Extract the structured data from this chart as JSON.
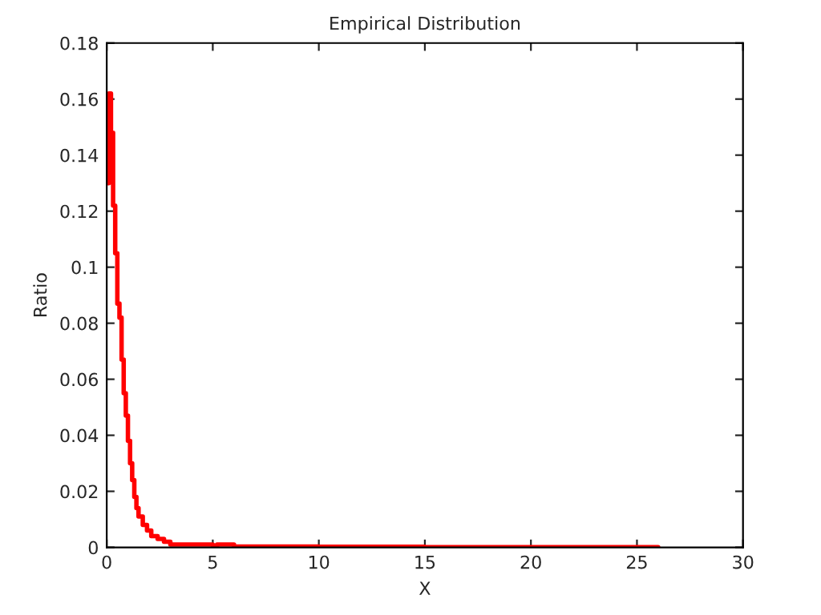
{
  "chart_data": {
    "type": "step",
    "title": "Empirical Distribution",
    "xlabel": "X",
    "ylabel": "Ratio",
    "x": [
      0,
      0.1,
      0.2,
      0.3,
      0.4,
      0.5,
      0.6,
      0.7,
      0.8,
      0.9,
      1.0,
      1.1,
      1.2,
      1.3,
      1.4,
      1.5,
      1.7,
      1.9,
      2.1,
      2.4,
      2.7,
      3.0,
      3.5,
      4.0,
      5.0,
      5.2,
      6.0,
      10.0,
      15.0,
      20.0,
      26.0
    ],
    "series": [
      {
        "color": "#ff0000",
        "values": [
          0.13,
          0.162,
          0.148,
          0.122,
          0.105,
          0.087,
          0.082,
          0.067,
          0.055,
          0.047,
          0.038,
          0.03,
          0.024,
          0.018,
          0.014,
          0.011,
          0.008,
          0.006,
          0.004,
          0.003,
          0.002,
          0.001,
          0.001,
          0.001,
          0.0005,
          0.001,
          0.0003,
          0.0002,
          0.0001,
          0.0001,
          0.0001
        ]
      }
    ],
    "xlim": [
      0,
      30
    ],
    "xticks": [
      0,
      5,
      10,
      15,
      20,
      25,
      30
    ],
    "ylim": [
      0,
      0.18
    ],
    "yticks": [
      0,
      0.02,
      0.04,
      0.06,
      0.08,
      0.1,
      0.12,
      0.14,
      0.16,
      0.18
    ],
    "grid": false,
    "legend": false,
    "line_style": "solid",
    "marker": "none"
  }
}
